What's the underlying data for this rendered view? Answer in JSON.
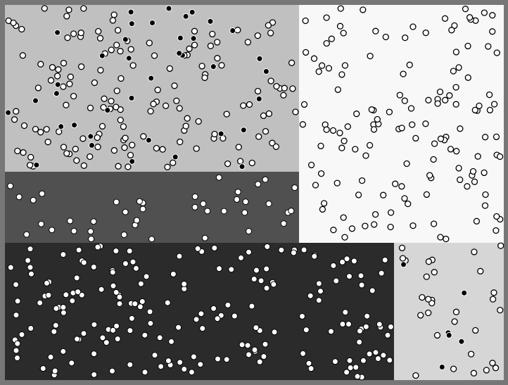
{
  "colors": {
    "frame": "#777777",
    "light_gray": "#c0c0c0",
    "white": "#f8f8f8",
    "medium_gray": "#505050",
    "dark_gray": "#2b2b2b",
    "pale_gray": "#d6d6d6",
    "outlined_circle_fill": "#ffffff",
    "outlined_circle_stroke": "#000000",
    "filled_circle": "#000000"
  },
  "regions": [
    {
      "name": "region-top-left",
      "color_key": "light_gray"
    },
    {
      "name": "region-top-right",
      "color_key": "white"
    },
    {
      "name": "region-middle-left",
      "color_key": "medium_gray"
    },
    {
      "name": "region-bottom-left",
      "color_key": "dark_gray"
    },
    {
      "name": "region-bottom-right",
      "color_key": "pale_gray"
    }
  ],
  "scatter": {
    "outlined_circles_on_white": 140,
    "outlined_circles_on_light_gray": 150,
    "filled_circles_on_light_gray": 38,
    "white_circles_on_medium_gray": 40,
    "white_circles_on_dark_gray": 190,
    "outlined_circles_on_pale_gray": 30,
    "filled_circles_on_pale_gray": 6
  }
}
